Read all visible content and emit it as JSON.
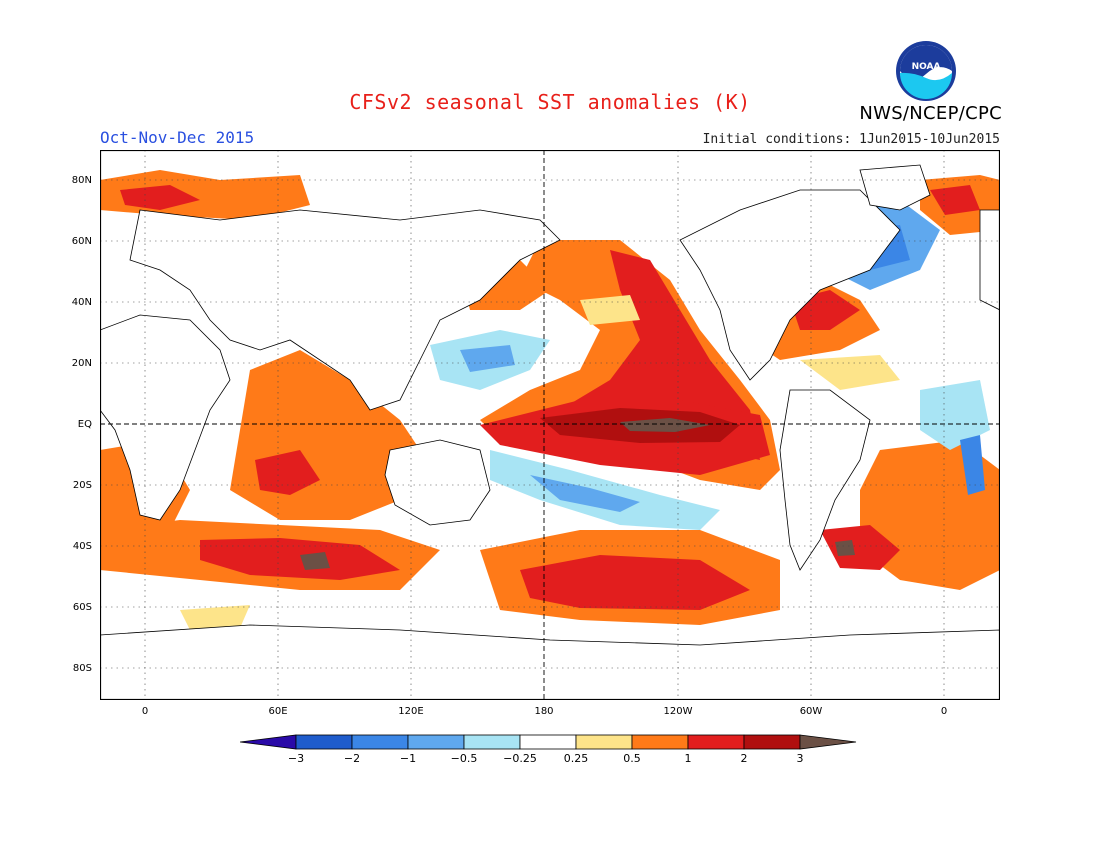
{
  "header": {
    "title": "CFSv2 seasonal SST anomalies (K)",
    "period": "Oct-Nov-Dec 2015",
    "initial_conditions": "Initial conditions: 1Jun2015-10Jun2015",
    "agency": "NWS/NCEP/CPC",
    "logo_text": "NOAA"
  },
  "axes": {
    "lat_labels": [
      "80N",
      "60N",
      "40N",
      "20N",
      "EQ",
      "20S",
      "40S",
      "60S",
      "80S"
    ],
    "lon_labels": [
      "0",
      "60E",
      "120E",
      "180",
      "120W",
      "60W",
      "0"
    ]
  },
  "colorbar": {
    "ticks": [
      "-3",
      "-2",
      "-1",
      "-0.5",
      "-0.25",
      "0.25",
      "0.5",
      "1",
      "2",
      "3"
    ],
    "colors": [
      "#2a0aa8",
      "#1f5ccc",
      "#3b86e6",
      "#5fa8ee",
      "#a8e4f4",
      "#ffffff",
      "#fde48a",
      "#ff7a18",
      "#e21e1e",
      "#b00f0f",
      "#6b5045"
    ],
    "unit": "K"
  },
  "map": {
    "regions": [
      {
        "name": "equatorial-pacific-anomaly",
        "level": "3+"
      },
      {
        "name": "northeast-pacific-anomaly",
        "level": "1-2"
      },
      {
        "name": "indian-ocean-anomaly",
        "level": "0.5-1"
      },
      {
        "name": "southern-ocean-anomaly",
        "level": "1-2"
      },
      {
        "name": "south-atlantic-anomaly",
        "level": "0.5-1"
      },
      {
        "name": "north-atlantic-anomaly",
        "level": "0.5-1"
      },
      {
        "name": "west-pacific-negative-anomaly",
        "level": "-0.25 to -0.5"
      },
      {
        "name": "north-atlantic-negative-anomaly",
        "level": "-0.5 to -1"
      }
    ]
  }
}
